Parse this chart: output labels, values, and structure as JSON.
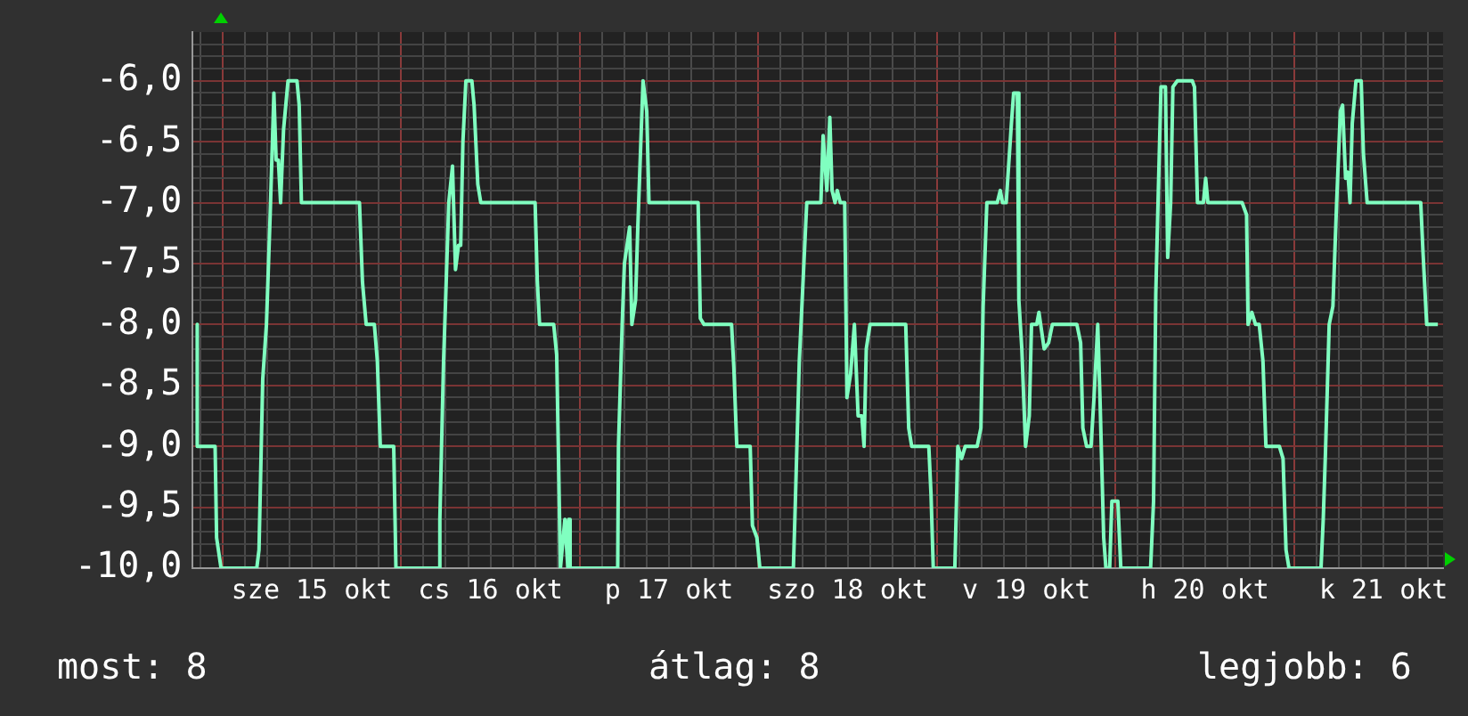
{
  "chart_data": {
    "type": "line",
    "x": [
      "--10-14T20:36",
      "--10-14T20:36",
      "--10-14T23:00",
      "--10-14T23:12",
      "--10-14T23:48",
      "--10-15T04:36",
      "--10-15T04:54",
      "--10-15T05:24",
      "--10-15T05:54",
      "--10-15T06:24",
      "--10-15T06:54",
      "--10-15T07:12",
      "--10-15T07:30",
      "--10-15T07:48",
      "--10-15T08:12",
      "--10-15T08:48",
      "--10-15T10:00",
      "--10-15T10:18",
      "--10-15T10:36",
      "--10-15T18:24",
      "--10-15T18:48",
      "--10-15T19:18",
      "--10-15T20:24",
      "--10-15T20:48",
      "--10-15T21:12",
      "--10-15T22:42",
      "--10-15T23:00",
      "--10-15T23:18",
      "--10-16T05:00",
      "--10-16T05:12",
      "--10-16T05:42",
      "--10-16T06:00",
      "--10-16T06:24",
      "--10-16T06:54",
      "--10-16T07:18",
      "--10-16T07:42",
      "--10-16T08:00",
      "--10-16T08:18",
      "--10-16T08:42",
      "--10-16T09:30",
      "--10-16T09:48",
      "--10-16T10:18",
      "--10-16T10:42",
      "--10-16T18:00",
      "--10-16T18:18",
      "--10-16T18:36",
      "--10-16T20:30",
      "--10-16T20:54",
      "--10-16T21:24",
      "--10-16T22:00",
      "--10-16T22:24",
      "--10-16T22:30",
      "--10-16T22:42",
      "--10-17T05:06",
      "--10-17T05:12",
      "--10-17T05:42",
      "--10-17T06:00",
      "--10-17T06:42",
      "--10-17T07:00",
      "--10-17T07:30",
      "--10-17T07:48",
      "--10-17T08:30",
      "--10-17T09:00",
      "--10-17T09:18",
      "--10-17T15:54",
      "--10-17T16:12",
      "--10-17T16:42",
      "--10-17T20:24",
      "--10-17T20:42",
      "--10-17T21:06",
      "--10-17T22:54",
      "--10-17T23:12",
      "--10-17T23:48",
      "--10-18T00:12",
      "--10-18T04:42",
      "--10-18T04:54",
      "--10-18T05:30",
      "--10-18T06:00",
      "--10-18T06:30",
      "--10-18T08:24",
      "--10-18T08:42",
      "--10-18T09:12",
      "--10-18T09:36",
      "--10-18T09:54",
      "--10-18T10:18",
      "--10-18T10:36",
      "--10-18T11:00",
      "--10-18T11:36",
      "--10-18T11:54",
      "--10-18T12:24",
      "--10-18T12:54",
      "--10-18T13:24",
      "--10-18T13:54",
      "--10-18T14:12",
      "--10-18T14:30",
      "--10-18T15:00",
      "--10-18T19:48",
      "--10-18T20:12",
      "--10-18T20:36",
      "--10-18T22:54",
      "--10-18T23:12",
      "--10-18T23:30",
      "--10-19T02:24",
      "--10-19T02:48",
      "--10-19T03:18",
      "--10-19T03:48",
      "--10-19T05:24",
      "--10-19T05:54",
      "--10-19T06:12",
      "--10-19T06:42",
      "--10-19T08:06",
      "--10-19T08:30",
      "--10-19T08:48",
      "--10-19T09:18",
      "--10-19T10:00",
      "--10-19T10:18",
      "--10-19T10:48",
      "--10-19T11:00",
      "--10-19T11:24",
      "--10-19T11:54",
      "--10-19T12:24",
      "--10-19T12:42",
      "--10-19T13:24",
      "--10-19T13:42",
      "--10-19T14:24",
      "--10-19T15:00",
      "--10-19T15:30",
      "--10-19T18:48",
      "--10-19T19:18",
      "--10-19T19:36",
      "--10-19T20:06",
      "--10-19T20:42",
      "--10-19T21:06",
      "--10-19T21:36",
      "--10-19T21:54",
      "--10-19T22:24",
      "--10-19T22:42",
      "--10-19T23:12",
      "--10-19T23:30",
      "--10-20T00:18",
      "--10-20T00:42",
      "--10-20T04:42",
      "--10-20T05:06",
      "--10-20T05:24",
      "--10-20T05:42",
      "--10-20T06:06",
      "--10-20T06:42",
      "--10-20T07:00",
      "--10-20T07:24",
      "--10-20T07:42",
      "--10-20T08:18",
      "--10-20T10:18",
      "--10-20T10:36",
      "--10-20T11:00",
      "--10-20T11:48",
      "--10-20T12:06",
      "--10-20T12:24",
      "--10-20T17:00",
      "--10-20T17:36",
      "--10-20T17:48",
      "--10-20T18:18",
      "--10-20T18:48",
      "--10-20T19:18",
      "--10-20T19:48",
      "--10-20T20:12",
      "--10-20T22:00",
      "--10-20T22:30",
      "--10-20T22:54",
      "--10-20T23:18",
      "--10-21T03:36",
      "--10-21T03:54",
      "--10-21T04:12",
      "--10-21T04:42",
      "--10-21T05:12",
      "--10-21T05:42",
      "--10-21T06:12",
      "--10-21T06:30",
      "--10-21T06:54",
      "--10-21T07:12",
      "--10-21T07:30",
      "--10-21T07:48",
      "--10-21T08:18",
      "--10-21T09:00",
      "--10-21T09:18",
      "--10-21T09:48",
      "--10-21T17:00",
      "--10-21T17:18",
      "--10-21T17:48",
      "--10-21T19:18"
    ],
    "series": [
      {
        "color": "#80ffc0",
        "values": [
          -8.0,
          -9.0,
          -9.0,
          -9.75,
          -10.0,
          -10.0,
          -9.85,
          -8.45,
          -8.0,
          -7.1,
          -6.1,
          -6.65,
          -6.65,
          -7.0,
          -6.4,
          -6.0,
          -6.0,
          -6.2,
          -7.0,
          -7.0,
          -7.65,
          -8.0,
          -8.0,
          -8.3,
          -9.0,
          -9.0,
          -9.0,
          -10.0,
          -10.0,
          -9.6,
          -8.3,
          -7.75,
          -7.0,
          -6.7,
          -7.55,
          -7.35,
          -7.35,
          -6.5,
          -6.0,
          -6.0,
          -6.2,
          -6.85,
          -7.0,
          -7.0,
          -7.65,
          -8.0,
          -8.0,
          -8.25,
          -10.0,
          -9.6,
          -10.0,
          -9.6,
          -10.0,
          -10.0,
          -9.0,
          -8.0,
          -7.5,
          -7.2,
          -8.0,
          -7.8,
          -7.2,
          -6.0,
          -6.25,
          -7.0,
          -7.0,
          -7.95,
          -8.0,
          -8.0,
          -8.35,
          -9.0,
          -9.0,
          -9.65,
          -9.75,
          -10.0,
          -10.0,
          -9.6,
          -8.3,
          -7.65,
          -7.0,
          -7.0,
          -6.45,
          -6.9,
          -6.3,
          -6.9,
          -7.0,
          -6.9,
          -7.0,
          -7.0,
          -8.6,
          -8.4,
          -8.0,
          -8.75,
          -8.75,
          -9.0,
          -8.2,
          -8.0,
          -8.0,
          -8.85,
          -9.0,
          -9.0,
          -9.4,
          -10.0,
          -10.0,
          -9.0,
          -9.1,
          -9.0,
          -9.0,
          -8.85,
          -7.85,
          -7.0,
          -7.0,
          -6.9,
          -7.0,
          -7.0,
          -6.35,
          -6.1,
          -6.1,
          -7.8,
          -8.2,
          -9.0,
          -8.75,
          -8.0,
          -8.0,
          -7.9,
          -8.2,
          -8.15,
          -8.0,
          -8.0,
          -8.15,
          -8.85,
          -9.0,
          -9.0,
          -8.6,
          -8.0,
          -8.6,
          -9.75,
          -10.0,
          -10.0,
          -9.45,
          -9.45,
          -10.0,
          -10.0,
          -9.45,
          -7.75,
          -7.0,
          -6.05,
          -6.05,
          -7.45,
          -7.0,
          -6.05,
          -6.0,
          -6.0,
          -6.05,
          -7.0,
          -7.0,
          -6.8,
          -7.0,
          -7.0,
          -7.1,
          -8.0,
          -7.9,
          -8.0,
          -8.0,
          -8.3,
          -9.0,
          -9.0,
          -9.1,
          -9.85,
          -10.0,
          -10.0,
          -9.6,
          -9.05,
          -8.0,
          -7.85,
          -7.0,
          -6.25,
          -6.2,
          -6.8,
          -6.75,
          -7.0,
          -6.35,
          -6.0,
          -6.0,
          -6.6,
          -7.0,
          -7.0,
          -7.4,
          -8.0,
          -8.0
        ]
      }
    ],
    "xlim": [
      "--10-14T20:00",
      "--10-21T20:00"
    ],
    "xticks": [
      {
        "value": "--10-14T21:00",
        "label": null
      },
      {
        "value": "--10-15T00:00",
        "label": null
      },
      {
        "value": "--10-15T03:00",
        "label": null
      },
      {
        "value": "--10-15T06:00",
        "label": null
      },
      {
        "value": "--10-15T09:00",
        "label": null
      },
      {
        "value": "--10-15T12:00",
        "label": "sze 15 okt"
      },
      {
        "value": "--10-15T15:00",
        "label": null
      },
      {
        "value": "--10-15T18:00",
        "label": null
      },
      {
        "value": "--10-15T21:00",
        "label": null
      },
      {
        "value": "--10-16T00:00",
        "label": null
      },
      {
        "value": "--10-16T03:00",
        "label": null
      },
      {
        "value": "--10-16T06:00",
        "label": null
      },
      {
        "value": "--10-16T09:00",
        "label": null
      },
      {
        "value": "--10-16T12:00",
        "label": "cs 16 okt"
      },
      {
        "value": "--10-16T15:00",
        "label": null
      },
      {
        "value": "--10-16T18:00",
        "label": null
      },
      {
        "value": "--10-16T21:00",
        "label": null
      },
      {
        "value": "--10-17T00:00",
        "label": null
      },
      {
        "value": "--10-17T03:00",
        "label": null
      },
      {
        "value": "--10-17T06:00",
        "label": null
      },
      {
        "value": "--10-17T09:00",
        "label": null
      },
      {
        "value": "--10-17T12:00",
        "label": "p 17 okt"
      },
      {
        "value": "--10-17T15:00",
        "label": null
      },
      {
        "value": "--10-17T18:00",
        "label": null
      },
      {
        "value": "--10-17T21:00",
        "label": null
      },
      {
        "value": "--10-18T00:00",
        "label": null
      },
      {
        "value": "--10-18T03:00",
        "label": null
      },
      {
        "value": "--10-18T06:00",
        "label": null
      },
      {
        "value": "--10-18T09:00",
        "label": null
      },
      {
        "value": "--10-18T12:00",
        "label": "szo 18 okt"
      },
      {
        "value": "--10-18T15:00",
        "label": null
      },
      {
        "value": "--10-18T18:00",
        "label": null
      },
      {
        "value": "--10-18T21:00",
        "label": null
      },
      {
        "value": "--10-19T00:00",
        "label": null
      },
      {
        "value": "--10-19T03:00",
        "label": null
      },
      {
        "value": "--10-19T06:00",
        "label": null
      },
      {
        "value": "--10-19T09:00",
        "label": null
      },
      {
        "value": "--10-19T12:00",
        "label": "v 19 okt"
      },
      {
        "value": "--10-19T15:00",
        "label": null
      },
      {
        "value": "--10-19T18:00",
        "label": null
      },
      {
        "value": "--10-19T21:00",
        "label": null
      },
      {
        "value": "--10-20T00:00",
        "label": null
      },
      {
        "value": "--10-20T03:00",
        "label": null
      },
      {
        "value": "--10-20T06:00",
        "label": null
      },
      {
        "value": "--10-20T09:00",
        "label": null
      },
      {
        "value": "--10-20T12:00",
        "label": "h 20 okt"
      },
      {
        "value": "--10-20T15:00",
        "label": null
      },
      {
        "value": "--10-20T18:00",
        "label": null
      },
      {
        "value": "--10-20T21:00",
        "label": null
      },
      {
        "value": "--10-21T00:00",
        "label": null
      },
      {
        "value": "--10-21T03:00",
        "label": null
      },
      {
        "value": "--10-21T06:00",
        "label": null
      },
      {
        "value": "--10-21T09:00",
        "label": null
      },
      {
        "value": "--10-21T12:00",
        "label": "k 21 okt"
      },
      {
        "value": "--10-21T15:00",
        "label": null
      },
      {
        "value": "--10-21T18:00",
        "label": null
      }
    ],
    "ylim": [
      -10,
      -5.6
    ],
    "yticks": [
      {
        "value": -10,
        "label": "-10,0"
      },
      {
        "value": -9.9,
        "label": null
      },
      {
        "value": -9.8,
        "label": null
      },
      {
        "value": -9.7,
        "label": null
      },
      {
        "value": -9.6,
        "label": null
      },
      {
        "value": -9.5,
        "label": "-9,5"
      },
      {
        "value": -9.4,
        "label": null
      },
      {
        "value": -9.3,
        "label": null
      },
      {
        "value": -9.2,
        "label": null
      },
      {
        "value": -9.1,
        "label": null
      },
      {
        "value": -9,
        "label": "-9,0"
      },
      {
        "value": -8.9,
        "label": null
      },
      {
        "value": -8.8,
        "label": null
      },
      {
        "value": -8.7,
        "label": null
      },
      {
        "value": -8.6,
        "label": null
      },
      {
        "value": -8.5,
        "label": "-8,5"
      },
      {
        "value": -8.4,
        "label": null
      },
      {
        "value": -8.3,
        "label": null
      },
      {
        "value": -8.2,
        "label": null
      },
      {
        "value": -8.1,
        "label": null
      },
      {
        "value": -8,
        "label": "-8,0"
      },
      {
        "value": -7.9,
        "label": null
      },
      {
        "value": -7.8,
        "label": null
      },
      {
        "value": -7.7,
        "label": null
      },
      {
        "value": -7.6,
        "label": null
      },
      {
        "value": -7.5,
        "label": "-7,5"
      },
      {
        "value": -7.4,
        "label": null
      },
      {
        "value": -7.3,
        "label": null
      },
      {
        "value": -7.2,
        "label": null
      },
      {
        "value": -7.1,
        "label": null
      },
      {
        "value": -7,
        "label": "-7,0"
      },
      {
        "value": -6.9,
        "label": null
      },
      {
        "value": -6.8,
        "label": null
      },
      {
        "value": -6.7,
        "label": null
      },
      {
        "value": -6.6,
        "label": null
      },
      {
        "value": -6.5,
        "label": "-6,5"
      },
      {
        "value": -6.4,
        "label": null
      },
      {
        "value": -6.3,
        "label": null
      },
      {
        "value": -6.2,
        "label": null
      },
      {
        "value": -6.1,
        "label": null
      },
      {
        "value": -6,
        "label": "-6,0"
      },
      {
        "value": -5.9,
        "label": null
      },
      {
        "value": -5.8,
        "label": null
      },
      {
        "value": -5.7,
        "label": null
      }
    ],
    "grid": true,
    "legend": false,
    "marker": "none",
    "line_style": "solid",
    "annotations": [
      "most: 8",
      "átlag: 8",
      "legjobb: 6"
    ]
  }
}
